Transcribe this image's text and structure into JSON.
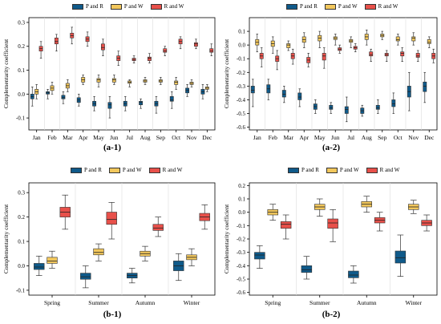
{
  "colors": {
    "p_and_r": "#0f5a8a",
    "p_and_w": "#f2c75c",
    "r_and_w": "#e8504a",
    "axis": "#000000",
    "median": "#222222"
  },
  "legend_entries": [
    "P and R",
    "P and W",
    "R and W"
  ],
  "panel_labels": [
    "(a-1)",
    "(a-2)",
    "(b-1)",
    "(b-2)"
  ],
  "chart_data": [
    {
      "id": "a-1",
      "type": "box",
      "ylabel": "Complementarity coefficient",
      "xlabel": "",
      "ylim": [
        -0.15,
        0.32
      ],
      "yticks": [
        -0.1,
        0.0,
        0.1,
        0.2,
        0.3
      ],
      "ytick_labels": [
        "-0.1",
        "0.0",
        "0.1",
        "0.2",
        "0.3"
      ],
      "categories": [
        "Jan",
        "Feb",
        "Mar",
        "Apr",
        "May",
        "Jun",
        "Jul",
        "Aug",
        "Sep",
        "Oct",
        "Nov",
        "Dec"
      ],
      "series": [
        {
          "name": "P and R",
          "boxes": [
            {
              "min": -0.05,
              "q1": -0.02,
              "median": -0.01,
              "q3": 0.0,
              "max": 0.03
            },
            {
              "min": -0.02,
              "q1": 0.0,
              "median": 0.005,
              "q3": 0.01,
              "max": 0.02
            },
            {
              "min": -0.04,
              "q1": -0.02,
              "median": -0.015,
              "q3": -0.005,
              "max": 0.01
            },
            {
              "min": -0.05,
              "q1": -0.035,
              "median": -0.025,
              "q3": -0.015,
              "max": 0.0
            },
            {
              "min": -0.07,
              "q1": -0.05,
              "median": -0.04,
              "q3": -0.03,
              "max": -0.01
            },
            {
              "min": -0.1,
              "q1": -0.06,
              "median": -0.045,
              "q3": -0.035,
              "max": -0.01
            },
            {
              "min": -0.07,
              "q1": -0.05,
              "median": -0.04,
              "q3": -0.03,
              "max": -0.01
            },
            {
              "min": -0.06,
              "q1": -0.045,
              "median": -0.035,
              "q3": -0.03,
              "max": -0.02
            },
            {
              "min": -0.08,
              "q1": -0.05,
              "median": -0.04,
              "q3": -0.03,
              "max": -0.01
            },
            {
              "min": -0.06,
              "q1": -0.03,
              "median": -0.025,
              "q3": -0.01,
              "max": 0.01
            },
            {
              "min": -0.01,
              "q1": 0.005,
              "median": 0.015,
              "q3": 0.025,
              "max": 0.04
            },
            {
              "min": -0.02,
              "q1": 0.0,
              "median": 0.01,
              "q3": 0.02,
              "max": 0.04
            }
          ]
        },
        {
          "name": "P and W",
          "boxes": [
            {
              "min": -0.02,
              "q1": 0.0,
              "median": 0.01,
              "q3": 0.02,
              "max": 0.04
            },
            {
              "min": 0.0,
              "q1": 0.015,
              "median": 0.025,
              "q3": 0.035,
              "max": 0.05
            },
            {
              "min": 0.01,
              "q1": 0.025,
              "median": 0.035,
              "q3": 0.045,
              "max": 0.06
            },
            {
              "min": 0.04,
              "q1": 0.05,
              "median": 0.06,
              "q3": 0.07,
              "max": 0.08
            },
            {
              "min": 0.03,
              "q1": 0.05,
              "median": 0.06,
              "q3": 0.065,
              "max": 0.08
            },
            {
              "min": 0.04,
              "q1": 0.05,
              "median": 0.06,
              "q3": 0.065,
              "max": 0.08
            },
            {
              "min": 0.03,
              "q1": 0.045,
              "median": 0.05,
              "q3": 0.055,
              "max": 0.06
            },
            {
              "min": 0.04,
              "q1": 0.05,
              "median": 0.055,
              "q3": 0.06,
              "max": 0.07
            },
            {
              "min": 0.04,
              "q1": 0.05,
              "median": 0.055,
              "q3": 0.06,
              "max": 0.07
            },
            {
              "min": 0.02,
              "q1": 0.04,
              "median": 0.05,
              "q3": 0.055,
              "max": 0.07
            },
            {
              "min": 0.03,
              "q1": 0.04,
              "median": 0.045,
              "q3": 0.05,
              "max": 0.06
            },
            {
              "min": 0.01,
              "q1": 0.02,
              "median": 0.025,
              "q3": 0.03,
              "max": 0.04
            }
          ]
        },
        {
          "name": "R and W",
          "boxes": [
            {
              "min": 0.15,
              "q1": 0.18,
              "median": 0.19,
              "q3": 0.2,
              "max": 0.22
            },
            {
              "min": 0.18,
              "q1": 0.21,
              "median": 0.22,
              "q3": 0.235,
              "max": 0.25
            },
            {
              "min": 0.21,
              "q1": 0.235,
              "median": 0.245,
              "q3": 0.255,
              "max": 0.28
            },
            {
              "min": 0.2,
              "q1": 0.22,
              "median": 0.23,
              "q3": 0.24,
              "max": 0.26
            },
            {
              "min": 0.16,
              "q1": 0.185,
              "median": 0.195,
              "q3": 0.21,
              "max": 0.23
            },
            {
              "min": 0.12,
              "q1": 0.14,
              "median": 0.15,
              "q3": 0.16,
              "max": 0.18
            },
            {
              "min": 0.13,
              "q1": 0.14,
              "median": 0.145,
              "q3": 0.15,
              "max": 0.16
            },
            {
              "min": 0.13,
              "q1": 0.14,
              "median": 0.15,
              "q3": 0.155,
              "max": 0.17
            },
            {
              "min": 0.16,
              "q1": 0.175,
              "median": 0.18,
              "q3": 0.19,
              "max": 0.2
            },
            {
              "min": 0.19,
              "q1": 0.21,
              "median": 0.22,
              "q3": 0.23,
              "max": 0.24
            },
            {
              "min": 0.19,
              "q1": 0.2,
              "median": 0.21,
              "q3": 0.215,
              "max": 0.23
            },
            {
              "min": 0.16,
              "q1": 0.175,
              "median": 0.18,
              "q3": 0.19,
              "max": 0.21
            }
          ]
        }
      ]
    },
    {
      "id": "a-2",
      "type": "box",
      "ylabel": "Complementarity coefficient",
      "xlabel": "",
      "ylim": [
        -0.62,
        0.2
      ],
      "yticks": [
        -0.6,
        -0.5,
        -0.4,
        -0.3,
        -0.2,
        -0.1,
        0.0,
        0.1
      ],
      "ytick_labels": [
        "-0.6",
        "-0.5",
        "-0.4",
        "-0.3",
        "-0.2",
        "-0.1",
        "0.0",
        "0.1"
      ],
      "categories": [
        "Jan",
        "Feb",
        "Mar",
        "Apr",
        "May",
        "Jun",
        "Jul",
        "Aug",
        "Sep",
        "Oct",
        "Nov",
        "Dec"
      ],
      "series": [
        {
          "name": "P and R",
          "boxes": [
            {
              "min": -0.45,
              "q1": -0.35,
              "median": -0.33,
              "q3": -0.3,
              "max": -0.25
            },
            {
              "min": -0.4,
              "q1": -0.35,
              "median": -0.32,
              "q3": -0.29,
              "max": -0.25
            },
            {
              "min": -0.42,
              "q1": -0.38,
              "median": -0.36,
              "q3": -0.33,
              "max": -0.3
            },
            {
              "min": -0.45,
              "q1": -0.4,
              "median": -0.38,
              "q3": -0.35,
              "max": -0.32
            },
            {
              "min": -0.5,
              "q1": -0.47,
              "median": -0.45,
              "q3": -0.43,
              "max": -0.4
            },
            {
              "min": -0.5,
              "q1": -0.47,
              "median": -0.46,
              "q3": -0.44,
              "max": -0.42
            },
            {
              "min": -0.56,
              "q1": -0.5,
              "median": -0.47,
              "q3": -0.45,
              "max": -0.38
            },
            {
              "min": -0.52,
              "q1": -0.5,
              "median": -0.48,
              "q3": -0.46,
              "max": -0.44
            },
            {
              "min": -0.5,
              "q1": -0.47,
              "median": -0.46,
              "q3": -0.44,
              "max": -0.4
            },
            {
              "min": -0.5,
              "q1": -0.45,
              "median": -0.43,
              "q3": -0.4,
              "max": -0.35
            },
            {
              "min": -0.48,
              "q1": -0.38,
              "median": -0.34,
              "q3": -0.3,
              "max": -0.2
            },
            {
              "min": -0.42,
              "q1": -0.34,
              "median": -0.3,
              "q3": -0.27,
              "max": -0.2
            }
          ]
        },
        {
          "name": "P and W",
          "boxes": [
            {
              "min": -0.05,
              "q1": 0.0,
              "median": 0.02,
              "q3": 0.04,
              "max": 0.08
            },
            {
              "min": -0.06,
              "q1": -0.01,
              "median": 0.01,
              "q3": 0.03,
              "max": 0.06
            },
            {
              "min": -0.04,
              "q1": -0.02,
              "median": 0.0,
              "q3": 0.01,
              "max": 0.03
            },
            {
              "min": -0.02,
              "q1": 0.02,
              "median": 0.04,
              "q3": 0.06,
              "max": 0.09
            },
            {
              "min": -0.02,
              "q1": 0.03,
              "median": 0.05,
              "q3": 0.07,
              "max": 0.1
            },
            {
              "min": 0.0,
              "q1": 0.04,
              "median": 0.05,
              "q3": 0.06,
              "max": 0.08
            },
            {
              "min": -0.02,
              "q1": 0.02,
              "median": 0.03,
              "q3": 0.04,
              "max": 0.06
            },
            {
              "min": 0.0,
              "q1": 0.04,
              "median": 0.06,
              "q3": 0.08,
              "max": 0.11
            },
            {
              "min": 0.04,
              "q1": 0.06,
              "median": 0.07,
              "q3": 0.08,
              "max": 0.1
            },
            {
              "min": 0.0,
              "q1": 0.03,
              "median": 0.04,
              "q3": 0.06,
              "max": 0.08
            },
            {
              "min": 0.0,
              "q1": 0.03,
              "median": 0.05,
              "q3": 0.06,
              "max": 0.09
            },
            {
              "min": -0.02,
              "q1": 0.01,
              "median": 0.02,
              "q3": 0.04,
              "max": 0.06
            }
          ]
        },
        {
          "name": "R and W",
          "boxes": [
            {
              "min": -0.16,
              "q1": -0.1,
              "median": -0.08,
              "q3": -0.06,
              "max": -0.02
            },
            {
              "min": -0.18,
              "q1": -0.12,
              "median": -0.1,
              "q3": -0.08,
              "max": -0.04
            },
            {
              "min": -0.14,
              "q1": -0.1,
              "median": -0.08,
              "q3": -0.06,
              "max": -0.03
            },
            {
              "min": -0.16,
              "q1": -0.13,
              "median": -0.11,
              "q3": -0.09,
              "max": -0.06
            },
            {
              "min": -0.17,
              "q1": -0.11,
              "median": -0.08,
              "q3": -0.06,
              "max": -0.02
            },
            {
              "min": -0.06,
              "q1": -0.04,
              "median": -0.03,
              "q3": -0.02,
              "max": 0.0
            },
            {
              "min": -0.05,
              "q1": -0.03,
              "median": -0.02,
              "q3": -0.01,
              "max": 0.01
            },
            {
              "min": -0.12,
              "q1": -0.08,
              "median": -0.07,
              "q3": -0.05,
              "max": -0.03
            },
            {
              "min": -0.12,
              "q1": -0.08,
              "median": -0.07,
              "q3": -0.06,
              "max": -0.04
            },
            {
              "min": -0.12,
              "q1": -0.08,
              "median": -0.06,
              "q3": -0.05,
              "max": -0.02
            },
            {
              "min": -0.12,
              "q1": -0.09,
              "median": -0.08,
              "q3": -0.06,
              "max": -0.04
            },
            {
              "min": -0.13,
              "q1": -0.1,
              "median": -0.08,
              "q3": -0.06,
              "max": -0.03
            }
          ]
        }
      ]
    },
    {
      "id": "b-1",
      "type": "box",
      "ylabel": "Complementarity coefficient",
      "xlabel": "",
      "ylim": [
        -0.12,
        0.34
      ],
      "yticks": [
        -0.1,
        0.0,
        0.1,
        0.2,
        0.3
      ],
      "ytick_labels": [
        "-0.1",
        "0.0",
        "0.1",
        "0.2",
        "0.3"
      ],
      "categories": [
        "Spring",
        "Summer",
        "Autumn",
        "Winter"
      ],
      "series": [
        {
          "name": "P and R",
          "boxes": [
            {
              "min": -0.04,
              "q1": -0.015,
              "median": -0.005,
              "q3": 0.01,
              "max": 0.04
            },
            {
              "min": -0.09,
              "q1": -0.055,
              "median": -0.045,
              "q3": -0.03,
              "max": 0.0
            },
            {
              "min": -0.07,
              "q1": -0.05,
              "median": -0.04,
              "q3": -0.03,
              "max": -0.01
            },
            {
              "min": -0.06,
              "q1": -0.02,
              "median": 0.0,
              "q3": 0.02,
              "max": 0.05
            }
          ]
        },
        {
          "name": "P and W",
          "boxes": [
            {
              "min": -0.01,
              "q1": 0.01,
              "median": 0.02,
              "q3": 0.035,
              "max": 0.06
            },
            {
              "min": 0.02,
              "q1": 0.045,
              "median": 0.055,
              "q3": 0.07,
              "max": 0.09
            },
            {
              "min": 0.02,
              "q1": 0.04,
              "median": 0.05,
              "q3": 0.06,
              "max": 0.08
            },
            {
              "min": 0.0,
              "q1": 0.025,
              "median": 0.035,
              "q3": 0.045,
              "max": 0.07
            }
          ]
        },
        {
          "name": "R and W",
          "boxes": [
            {
              "min": 0.15,
              "q1": 0.2,
              "median": 0.22,
              "q3": 0.24,
              "max": 0.29
            },
            {
              "min": 0.11,
              "q1": 0.17,
              "median": 0.19,
              "q3": 0.22,
              "max": 0.26
            },
            {
              "min": 0.12,
              "q1": 0.145,
              "median": 0.155,
              "q3": 0.17,
              "max": 0.2
            },
            {
              "min": 0.15,
              "q1": 0.185,
              "median": 0.2,
              "q3": 0.215,
              "max": 0.25
            }
          ]
        }
      ]
    },
    {
      "id": "b-2",
      "type": "box",
      "ylabel": "Complementarity coefficient",
      "xlabel": "",
      "ylim": [
        -0.62,
        0.22
      ],
      "yticks": [
        -0.6,
        -0.5,
        -0.4,
        -0.3,
        -0.2,
        -0.1,
        0.0,
        0.1,
        0.2
      ],
      "ytick_labels": [
        "-0.6",
        "-0.5",
        "-0.4",
        "-0.3",
        "-0.2",
        "-0.1",
        "0.0",
        "0.1",
        "0.2"
      ],
      "categories": [
        "Spring",
        "Summer",
        "Autumn",
        "Winter"
      ],
      "series": [
        {
          "name": "P and R",
          "boxes": [
            {
              "min": -0.42,
              "q1": -0.35,
              "median": -0.32,
              "q3": -0.3,
              "max": -0.25
            },
            {
              "min": -0.5,
              "q1": -0.45,
              "median": -0.43,
              "q3": -0.4,
              "max": -0.33
            },
            {
              "min": -0.53,
              "q1": -0.49,
              "median": -0.47,
              "q3": -0.44,
              "max": -0.4
            },
            {
              "min": -0.48,
              "q1": -0.38,
              "median": -0.34,
              "q3": -0.29,
              "max": -0.17
            }
          ]
        },
        {
          "name": "P and W",
          "boxes": [
            {
              "min": -0.06,
              "q1": -0.02,
              "median": 0.0,
              "q3": 0.02,
              "max": 0.06
            },
            {
              "min": -0.03,
              "q1": 0.02,
              "median": 0.04,
              "q3": 0.06,
              "max": 0.1
            },
            {
              "min": 0.0,
              "q1": 0.04,
              "median": 0.06,
              "q3": 0.08,
              "max": 0.12
            },
            {
              "min": -0.01,
              "q1": 0.02,
              "median": 0.04,
              "q3": 0.06,
              "max": 0.09
            }
          ]
        },
        {
          "name": "R and W",
          "boxes": [
            {
              "min": -0.2,
              "q1": -0.12,
              "median": -0.09,
              "q3": -0.07,
              "max": -0.02
            },
            {
              "min": -0.22,
              "q1": -0.12,
              "median": -0.08,
              "q3": -0.05,
              "max": 0.02
            },
            {
              "min": -0.14,
              "q1": -0.08,
              "median": -0.06,
              "q3": -0.04,
              "max": 0.0
            },
            {
              "min": -0.14,
              "q1": -0.1,
              "median": -0.08,
              "q3": -0.06,
              "max": -0.02
            }
          ]
        }
      ]
    }
  ]
}
